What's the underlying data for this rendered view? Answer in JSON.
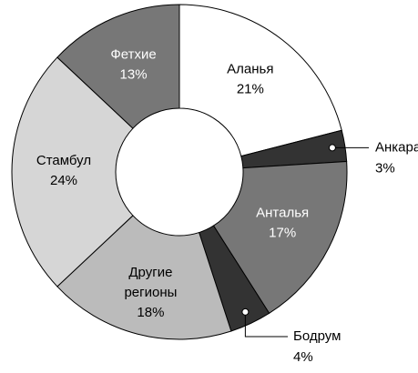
{
  "chart_data": {
    "type": "donut",
    "categories": [
      "Аланья",
      "Анкара",
      "Анталья",
      "Бодрум",
      "Другие регионы",
      "Стамбул",
      "Фетхие"
    ],
    "values": [
      21,
      3,
      17,
      4,
      18,
      24,
      13
    ],
    "value_labels": [
      "21%",
      "3%",
      "17%",
      "4%",
      "18%",
      "24%",
      "13%"
    ],
    "colors": [
      "#ffffff",
      "#333333",
      "#777777",
      "#333333",
      "#bbbbbb",
      "#d6d6d6",
      "#777777"
    ]
  }
}
